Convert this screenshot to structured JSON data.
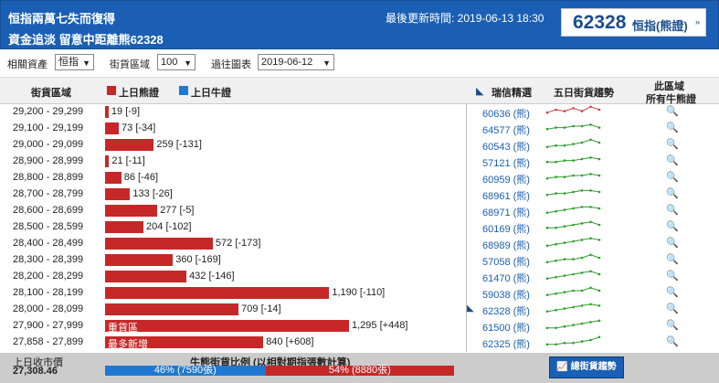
{
  "header": {
    "title_line1": "恒指兩萬七失而復得",
    "title_line2": "資金追淡 留意中距離熊62328",
    "update_label": "最後更新時間: 2019-06-13 18:30",
    "feature_value": "62328",
    "feature_label": "恒指(熊證)",
    "feature_arrow": "»"
  },
  "filters": {
    "asset_label": "相關資產",
    "asset_value": "恒指",
    "zone_label": "街貨區域",
    "zone_value": "100",
    "chart_label": "過往圖表",
    "chart_value": "2019-06-12"
  },
  "table_header": {
    "zone": "街貨區域",
    "bear_legend": "上日熊證",
    "bull_legend": "上日牛證",
    "pick": "瑞信精選",
    "trend": "五日街貨趨勢",
    "all_line1": "此區域",
    "all_line2": "所有牛熊證"
  },
  "colors": {
    "bear": "#c62828",
    "bull": "#1f78d1",
    "trend_up": "#2e9e2e",
    "trend_top": "#d04040"
  },
  "rows": [
    {
      "range": "29,200 - 29,299",
      "bar_value": 19,
      "label": "19 [-9]",
      "pick": "60636 (熊)",
      "trend": [
        3,
        5,
        4,
        6,
        4,
        7,
        5
      ],
      "trend_color": "red",
      "pick_icon": false
    },
    {
      "range": "29,100 - 29,199",
      "bar_value": 73,
      "label": "73 [-34]",
      "pick": "64577 (熊)",
      "trend": [
        3,
        4,
        4,
        5,
        5,
        6,
        4
      ],
      "trend_color": "green",
      "pick_icon": false
    },
    {
      "range": "29,000 - 29,099",
      "bar_value": 259,
      "label": "259 [-131]",
      "pick": "60543 (熊)",
      "trend": [
        2,
        3,
        3,
        4,
        5,
        7,
        5
      ],
      "trend_color": "green",
      "pick_icon": false
    },
    {
      "range": "28,900 - 28,999",
      "bar_value": 21,
      "label": "21 [-11]",
      "pick": "57121 (熊)",
      "trend": [
        3,
        3,
        4,
        4,
        5,
        6,
        5
      ],
      "trend_color": "green",
      "pick_icon": false
    },
    {
      "range": "28,800 - 28,899",
      "bar_value": 86,
      "label": "86 [-46]",
      "pick": "60959 (熊)",
      "trend": [
        3,
        4,
        4,
        5,
        5,
        6,
        5
      ],
      "trend_color": "green",
      "pick_icon": false
    },
    {
      "range": "28,700 - 28,799",
      "bar_value": 133,
      "label": "133 [-26]",
      "pick": "68961 (熊)",
      "trend": [
        3,
        4,
        4,
        5,
        6,
        6,
        5
      ],
      "trend_color": "green",
      "pick_icon": false
    },
    {
      "range": "28,600 - 28,699",
      "bar_value": 277,
      "label": "277 [-5]",
      "pick": "68971 (熊)",
      "trend": [
        2,
        3,
        4,
        5,
        6,
        6,
        5
      ],
      "trend_color": "green",
      "pick_icon": false
    },
    {
      "range": "28,500 - 28,599",
      "bar_value": 204,
      "label": "204 [-102]",
      "pick": "60169 (熊)",
      "trend": [
        3,
        3,
        4,
        5,
        6,
        7,
        5
      ],
      "trend_color": "green",
      "pick_icon": false
    },
    {
      "range": "28,400 - 28,499",
      "bar_value": 572,
      "label": "572 [-173]",
      "pick": "68989 (熊)",
      "trend": [
        2,
        3,
        4,
        5,
        6,
        7,
        6
      ],
      "trend_color": "green",
      "pick_icon": false
    },
    {
      "range": "28,300 - 28,399",
      "bar_value": 360,
      "label": "360 [-169]",
      "pick": "57058 (熊)",
      "trend": [
        2,
        3,
        4,
        4,
        5,
        7,
        5
      ],
      "trend_color": "green",
      "pick_icon": false
    },
    {
      "range": "28,200 - 28,299",
      "bar_value": 432,
      "label": "432 [-146]",
      "pick": "61470 (熊)",
      "trend": [
        2,
        3,
        4,
        5,
        6,
        7,
        5
      ],
      "trend_color": "green",
      "pick_icon": false
    },
    {
      "range": "28,100 - 28,199",
      "bar_value": 1190,
      "label": "1,190 [-110]",
      "pick": "59038 (熊)",
      "trend": [
        2,
        3,
        4,
        5,
        5,
        7,
        5
      ],
      "trend_color": "green",
      "pick_icon": false
    },
    {
      "range": "28,000 - 28,099",
      "bar_value": 709,
      "label": "709 [-14]",
      "pick": "62328 (熊)",
      "trend": [
        2,
        3,
        4,
        5,
        6,
        7,
        6
      ],
      "trend_color": "green",
      "pick_icon": true
    },
    {
      "range": "27,900 - 27,999",
      "bar_value": 1295,
      "label": "1,295 [+448]",
      "inner_label": "重貨區",
      "pick": "61500 (熊)",
      "trend": [
        2,
        2,
        3,
        4,
        5,
        6,
        7
      ],
      "trend_color": "green",
      "pick_icon": false
    },
    {
      "range": "27,858 - 27,899",
      "bar_value": 840,
      "label": "840 [+608]",
      "inner_label": "最多新增",
      "pick": "62325 (熊)",
      "trend": [
        2,
        2,
        3,
        3,
        4,
        5,
        7
      ],
      "trend_color": "green",
      "pick_icon": false
    }
  ],
  "footer": {
    "close_label": "上日收市價",
    "close_value": "27,308.46",
    "ratio_title": "牛熊街貨比例 (以相對期指張數計算)",
    "bull_pct": 46,
    "bull_text": "46% (7590張)",
    "bear_text": "54% (8880張)",
    "trend_button": "總街貨趨勢"
  }
}
